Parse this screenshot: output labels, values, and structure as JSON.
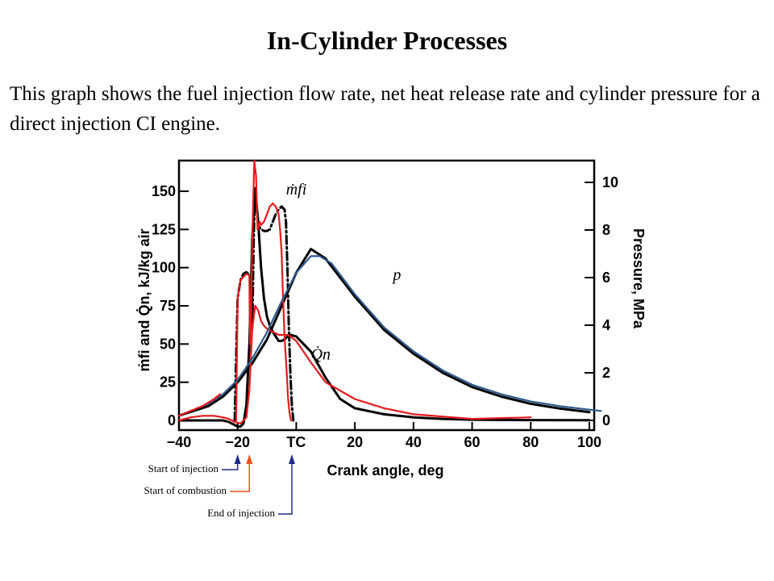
{
  "slide": {
    "title": "In-Cylinder Processes",
    "description": "This graph shows the fuel injection flow rate, net heat release rate and cylinder pressure for a direct injection CI engine."
  },
  "chart_data": {
    "type": "line",
    "xlabel": "Crank angle, deg",
    "ylabel_left": "ṁfi and Q̇n, kJ/kg air",
    "ylabel_right": "Pressure, MPa",
    "xlim": [
      -40,
      100
    ],
    "ylim_left": [
      0,
      165
    ],
    "ylim_right": [
      0,
      10.6
    ],
    "x_ticks": [
      {
        "value": -40,
        "label": "−40"
      },
      {
        "value": -20,
        "label": "−20"
      },
      {
        "value": 0,
        "label": "TC"
      },
      {
        "value": 20,
        "label": "20"
      },
      {
        "value": 40,
        "label": "40"
      },
      {
        "value": 60,
        "label": "60"
      },
      {
        "value": 80,
        "label": "80"
      },
      {
        "value": 100,
        "label": "100"
      }
    ],
    "y_ticks_left": [
      "0",
      "25",
      "50",
      "75",
      "100",
      "125",
      "150"
    ],
    "y_ticks_right": [
      "0",
      "2",
      "4",
      "6",
      "8",
      "10"
    ],
    "series": [
      {
        "name": "p",
        "axis": "right",
        "color": "#000000",
        "x": [
          -40,
          -30,
          -25,
          -20,
          -15,
          -10,
          -5,
          0,
          5,
          10,
          20,
          30,
          40,
          50,
          60,
          70,
          80,
          90,
          100
        ],
        "y": [
          0.2,
          0.6,
          1.0,
          1.6,
          2.4,
          3.4,
          4.8,
          6.2,
          7.2,
          6.8,
          5.2,
          3.8,
          2.8,
          2.0,
          1.4,
          1.0,
          0.7,
          0.5,
          0.35
        ]
      },
      {
        "name": "Q̇n",
        "axis": "left",
        "color": "#000000",
        "x": [
          -40,
          -30,
          -25,
          -23,
          -21,
          -20,
          -19,
          -18,
          -17,
          -16,
          -15,
          -14,
          -13,
          -12,
          -11,
          -10,
          -9,
          -8,
          -7,
          -6,
          -5,
          -4,
          -3,
          -2,
          0,
          5,
          10,
          15,
          20,
          30,
          40,
          50,
          60,
          80,
          100
        ],
        "y": [
          0,
          0,
          0,
          -1,
          -3,
          -4,
          -4,
          -2,
          10,
          50,
          120,
          152,
          130,
          100,
          80,
          68,
          62,
          58,
          55,
          52,
          52,
          53,
          55,
          56,
          55,
          45,
          28,
          14,
          8,
          4,
          2,
          1,
          0.5,
          0.2,
          0.1
        ]
      },
      {
        "name": "ṁfi",
        "axis": "left",
        "color": "#000000",
        "dash": "10,4,2,4",
        "x": [
          -21,
          -20.5,
          -20,
          -19,
          -18,
          -17,
          -16,
          -15.2,
          -15,
          -14.5,
          -14,
          -13,
          -12,
          -11,
          -10,
          -9,
          -8,
          -7,
          -6,
          -5,
          -4,
          -3.5,
          -3,
          -2.5,
          -2,
          -1.5,
          -1
        ],
        "y": [
          0,
          40,
          80,
          92,
          96,
          97,
          95,
          90,
          60,
          120,
          150,
          128,
          125,
          124,
          124,
          125,
          130,
          135,
          138,
          140,
          138,
          130,
          100,
          60,
          30,
          10,
          0
        ]
      },
      {
        "name": "ṁfi (red overlay)",
        "axis": "left",
        "color": "#e41a1c",
        "x": [
          -20.5,
          -20,
          -19,
          -17,
          -16,
          -15.8,
          -15.5,
          -15,
          -14.3,
          -13.7,
          -13.2,
          -13,
          -12.5,
          -12,
          -11,
          -10,
          -9,
          -8,
          -7,
          -6,
          -5.5,
          -5,
          -4.5,
          -4,
          -3.2,
          -2.8,
          -2.3,
          -1.8
        ],
        "y": [
          0,
          80,
          92,
          96,
          95,
          50,
          60,
          120,
          170,
          160,
          125,
          125,
          130,
          128,
          130,
          135,
          140,
          142,
          140,
          135,
          125,
          110,
          80,
          55,
          30,
          15,
          5,
          0
        ]
      },
      {
        "name": "Q̇n (red overlay)",
        "axis": "left",
        "color": "#e41a1c",
        "x": [
          -40,
          -36,
          -32,
          -28,
          -25,
          -23,
          -21,
          -19,
          -17,
          -16,
          -15,
          -14,
          -13,
          -12,
          -11,
          -10,
          -9,
          -8,
          -7,
          -6,
          -5,
          -4,
          -3,
          -2,
          0,
          5,
          10,
          20,
          30,
          40,
          60,
          80
        ],
        "y": [
          0,
          2,
          3,
          3,
          2,
          1,
          -1,
          -2,
          2,
          20,
          60,
          75,
          72,
          65,
          62,
          60,
          59,
          58,
          57,
          56,
          56,
          56,
          56,
          55,
          52,
          38,
          25,
          14,
          8,
          4,
          1,
          2
        ]
      },
      {
        "name": "Pressure (blue overlay)",
        "axis": "right",
        "color": "#2d5a8e",
        "x": [
          -40,
          -30,
          -25,
          -20,
          -15,
          -10,
          -5,
          0,
          5,
          8,
          12,
          20,
          30,
          40,
          50,
          60,
          70,
          80,
          90,
          100,
          104
        ],
        "y": [
          0.2,
          0.7,
          1.1,
          1.7,
          2.6,
          3.7,
          5.0,
          6.2,
          6.9,
          6.9,
          6.6,
          5.3,
          3.9,
          2.9,
          2.1,
          1.5,
          1.1,
          0.8,
          0.6,
          0.45,
          0.4
        ]
      },
      {
        "name": "Pressure start (red overlay)",
        "axis": "right",
        "color": "#e41a1c",
        "x": [
          -40,
          -36,
          -32,
          -28,
          -26
        ],
        "y": [
          0.2,
          0.4,
          0.6,
          0.9,
          1.1
        ]
      }
    ],
    "curve_labels": [
      {
        "text": "ṁfi",
        "x": -3.5,
        "y": 148,
        "axis": "left"
      },
      {
        "text": "p",
        "x": 33,
        "y": 92,
        "axis": "left"
      },
      {
        "text": "Q̇n",
        "x": 5,
        "y": 40,
        "axis": "left"
      }
    ],
    "annotations": [
      {
        "text": "Start of injection",
        "x": -20,
        "color": "#1f2a8c"
      },
      {
        "text": "Start of combustion",
        "x": -16,
        "color": "#e8501c"
      },
      {
        "text": "End of injection",
        "x": -1.5,
        "color": "#1f2a8c"
      }
    ]
  }
}
